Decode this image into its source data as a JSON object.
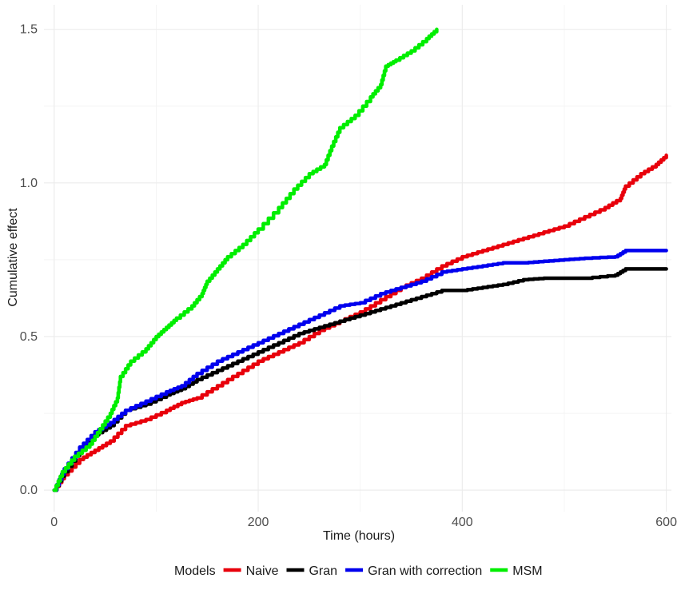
{
  "chart_data": {
    "type": "line",
    "title": "",
    "xlabel": "Time (hours)",
    "ylabel": "Cumulative effect",
    "xlim": [
      -10,
      605
    ],
    "ylim": [
      -0.07,
      1.58
    ],
    "x_ticks": [
      0,
      200,
      400,
      600
    ],
    "x_tick_labels": [
      "0",
      "200",
      "400",
      "600"
    ],
    "y_ticks": [
      0.0,
      0.5,
      1.0,
      1.5
    ],
    "y_tick_labels": [
      "0.0",
      "0.5",
      "1.0",
      "1.5"
    ],
    "grid": true,
    "legend_title": "Models",
    "legend_position": "bottom",
    "series": [
      {
        "name": "Naive",
        "color": "#e8000b",
        "points": [
          [
            0,
            0
          ],
          [
            10,
            0.05
          ],
          [
            25,
            0.1
          ],
          [
            40,
            0.13
          ],
          [
            55,
            0.16
          ],
          [
            70,
            0.21
          ],
          [
            90,
            0.23
          ],
          [
            110,
            0.26
          ],
          [
            125,
            0.285
          ],
          [
            140,
            0.3
          ],
          [
            160,
            0.34
          ],
          [
            180,
            0.38
          ],
          [
            200,
            0.42
          ],
          [
            220,
            0.45
          ],
          [
            240,
            0.48
          ],
          [
            260,
            0.52
          ],
          [
            280,
            0.55
          ],
          [
            300,
            0.58
          ],
          [
            320,
            0.62
          ],
          [
            340,
            0.66
          ],
          [
            360,
            0.69
          ],
          [
            380,
            0.73
          ],
          [
            400,
            0.76
          ],
          [
            420,
            0.78
          ],
          [
            440,
            0.8
          ],
          [
            460,
            0.82
          ],
          [
            480,
            0.84
          ],
          [
            500,
            0.86
          ],
          [
            520,
            0.89
          ],
          [
            540,
            0.92
          ],
          [
            555,
            0.95
          ],
          [
            560,
            0.99
          ],
          [
            575,
            1.03
          ],
          [
            590,
            1.06
          ],
          [
            600,
            1.09
          ]
        ]
      },
      {
        "name": "Gran",
        "color": "#000000",
        "points": [
          [
            0,
            0
          ],
          [
            10,
            0.06
          ],
          [
            25,
            0.13
          ],
          [
            40,
            0.18
          ],
          [
            55,
            0.21
          ],
          [
            70,
            0.26
          ],
          [
            90,
            0.28
          ],
          [
            110,
            0.31
          ],
          [
            125,
            0.33
          ],
          [
            140,
            0.36
          ],
          [
            160,
            0.39
          ],
          [
            180,
            0.42
          ],
          [
            200,
            0.45
          ],
          [
            220,
            0.48
          ],
          [
            240,
            0.51
          ],
          [
            260,
            0.53
          ],
          [
            280,
            0.55
          ],
          [
            300,
            0.57
          ],
          [
            320,
            0.59
          ],
          [
            340,
            0.61
          ],
          [
            360,
            0.63
          ],
          [
            380,
            0.65
          ],
          [
            400,
            0.65
          ],
          [
            420,
            0.66
          ],
          [
            440,
            0.67
          ],
          [
            460,
            0.685
          ],
          [
            480,
            0.69
          ],
          [
            500,
            0.69
          ],
          [
            520,
            0.69
          ],
          [
            550,
            0.7
          ],
          [
            560,
            0.72
          ],
          [
            580,
            0.72
          ],
          [
            600,
            0.72
          ]
        ]
      },
      {
        "name": "Gran with correction",
        "color": "#0000ee",
        "points": [
          [
            0,
            0
          ],
          [
            10,
            0.07
          ],
          [
            25,
            0.14
          ],
          [
            40,
            0.19
          ],
          [
            55,
            0.22
          ],
          [
            70,
            0.26
          ],
          [
            90,
            0.29
          ],
          [
            110,
            0.32
          ],
          [
            125,
            0.34
          ],
          [
            140,
            0.38
          ],
          [
            160,
            0.42
          ],
          [
            180,
            0.45
          ],
          [
            200,
            0.48
          ],
          [
            220,
            0.51
          ],
          [
            240,
            0.54
          ],
          [
            260,
            0.57
          ],
          [
            280,
            0.6
          ],
          [
            300,
            0.61
          ],
          [
            320,
            0.64
          ],
          [
            340,
            0.66
          ],
          [
            360,
            0.68
          ],
          [
            380,
            0.71
          ],
          [
            400,
            0.72
          ],
          [
            420,
            0.73
          ],
          [
            440,
            0.74
          ],
          [
            460,
            0.74
          ],
          [
            480,
            0.745
          ],
          [
            500,
            0.75
          ],
          [
            520,
            0.755
          ],
          [
            550,
            0.76
          ],
          [
            560,
            0.78
          ],
          [
            580,
            0.78
          ],
          [
            600,
            0.78
          ]
        ]
      },
      {
        "name": "MSM",
        "color": "#00ee00",
        "points": [
          [
            0,
            0
          ],
          [
            8,
            0.06
          ],
          [
            20,
            0.11
          ],
          [
            35,
            0.15
          ],
          [
            45,
            0.2
          ],
          [
            55,
            0.25
          ],
          [
            62,
            0.3
          ],
          [
            65,
            0.37
          ],
          [
            75,
            0.42
          ],
          [
            90,
            0.46
          ],
          [
            100,
            0.5
          ],
          [
            110,
            0.53
          ],
          [
            120,
            0.56
          ],
          [
            135,
            0.6
          ],
          [
            145,
            0.64
          ],
          [
            150,
            0.68
          ],
          [
            160,
            0.72
          ],
          [
            170,
            0.76
          ],
          [
            185,
            0.8
          ],
          [
            200,
            0.85
          ],
          [
            220,
            0.92
          ],
          [
            235,
            0.98
          ],
          [
            250,
            1.03
          ],
          [
            265,
            1.06
          ],
          [
            272,
            1.12
          ],
          [
            280,
            1.18
          ],
          [
            295,
            1.22
          ],
          [
            310,
            1.28
          ],
          [
            320,
            1.32
          ],
          [
            325,
            1.38
          ],
          [
            335,
            1.4
          ],
          [
            350,
            1.43
          ],
          [
            365,
            1.47
          ],
          [
            375,
            1.5
          ]
        ]
      }
    ]
  }
}
